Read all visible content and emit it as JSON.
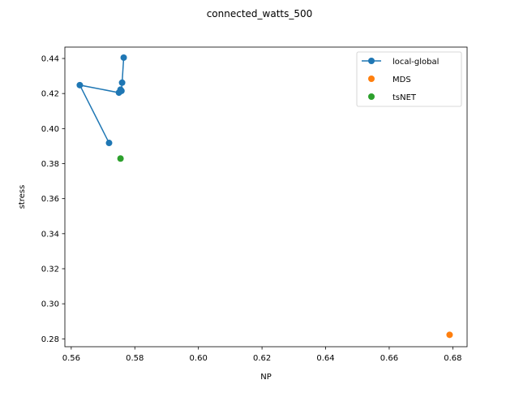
{
  "chart_data": {
    "type": "scatter",
    "title": "connected_watts_500",
    "xlabel": "NP",
    "ylabel": "stress",
    "xlim": [
      0.558,
      0.6845
    ],
    "ylim": [
      0.2755,
      0.4465
    ],
    "xticks": [
      0.56,
      0.58,
      0.6,
      0.62,
      0.64,
      0.66,
      0.68
    ],
    "xtick_labels": [
      "0.56",
      "0.58",
      "0.60",
      "0.62",
      "0.64",
      "0.66",
      "0.68"
    ],
    "yticks": [
      0.28,
      0.3,
      0.32,
      0.34,
      0.36,
      0.38,
      0.4,
      0.42,
      0.44
    ],
    "ytick_labels": [
      "0.28",
      "0.30",
      "0.32",
      "0.34",
      "0.36",
      "0.38",
      "0.40",
      "0.42",
      "0.44"
    ],
    "grid": false,
    "legend_position": "top-right",
    "series": [
      {
        "name": "local-global",
        "color": "#1f77b4",
        "style": "line-marker",
        "x": [
          0.5765,
          0.576,
          0.5758,
          0.5755,
          0.575,
          0.5627,
          0.5719
        ],
        "y": [
          0.4405,
          0.4262,
          0.4215,
          0.4222,
          0.4205,
          0.4248,
          0.3918
        ]
      },
      {
        "name": "MDS",
        "color": "#ff7f0e",
        "style": "marker",
        "x": [
          0.679
        ],
        "y": [
          0.2823
        ]
      },
      {
        "name": "tsNET",
        "color": "#2ca02c",
        "style": "marker",
        "x": [
          0.5755
        ],
        "y": [
          0.3829
        ]
      }
    ]
  }
}
